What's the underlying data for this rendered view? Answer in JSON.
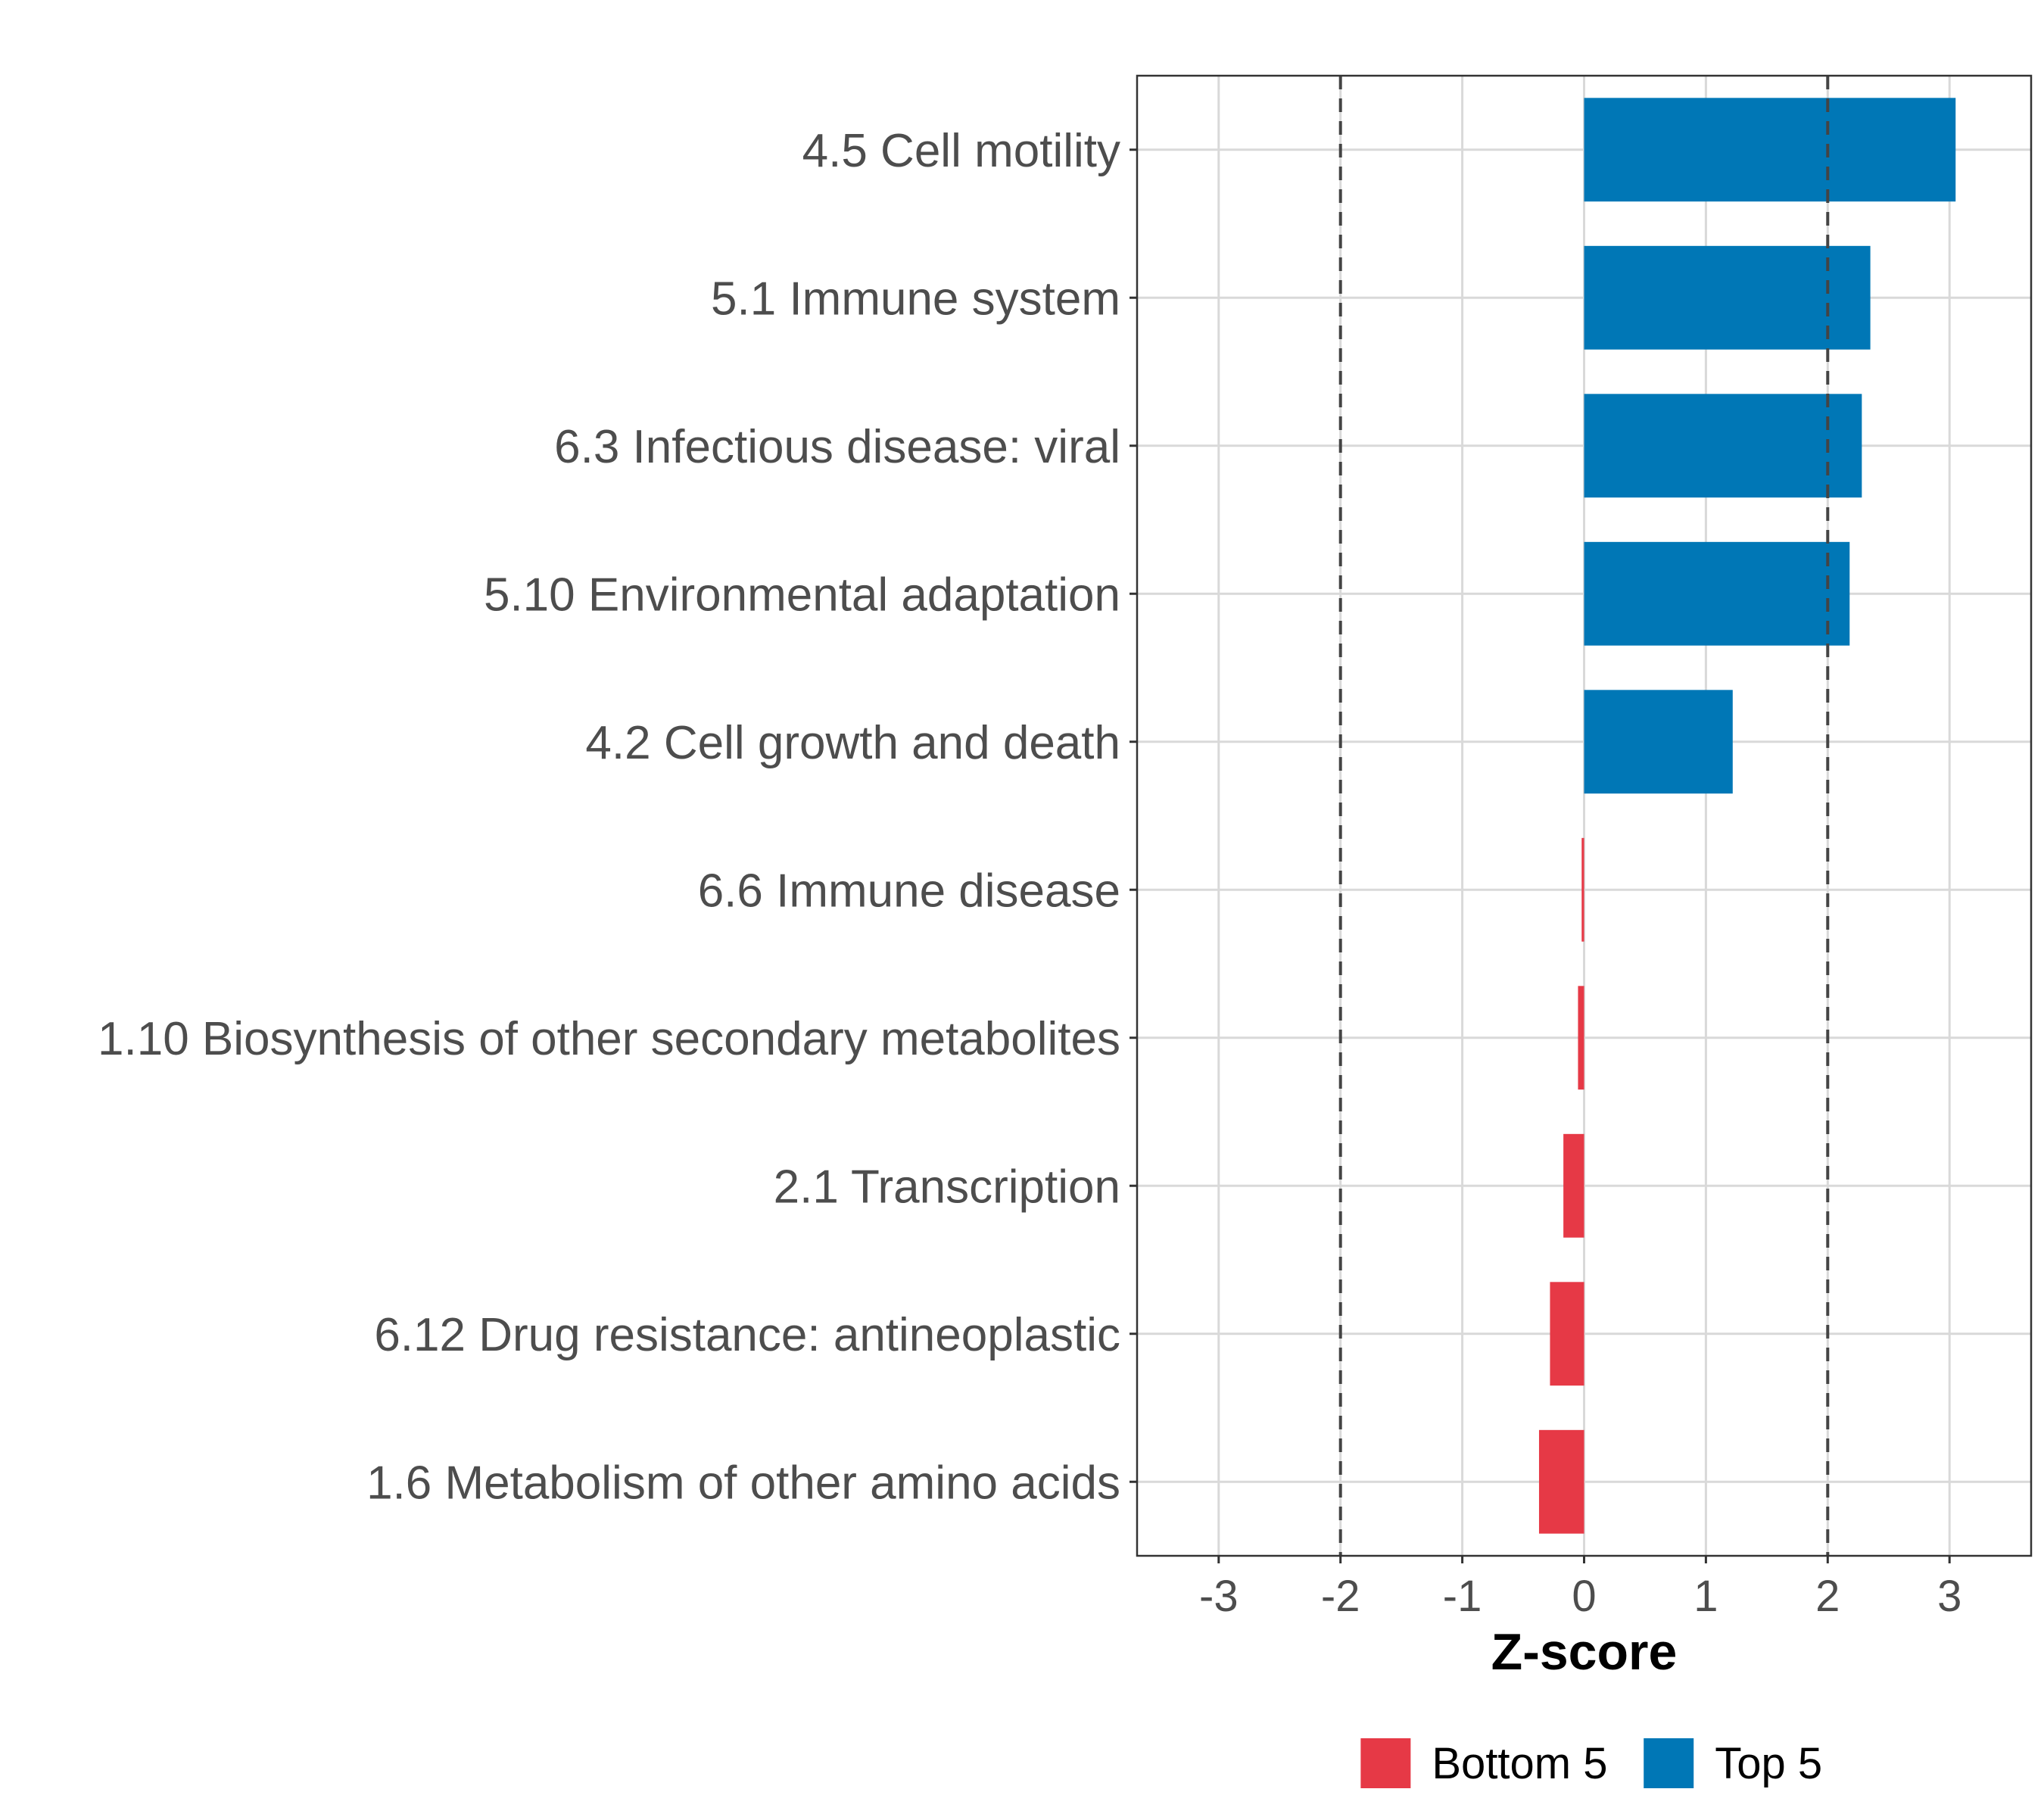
{
  "chart_data": {
    "type": "bar",
    "orientation": "horizontal",
    "categories": [
      "4.5 Cell motility",
      "5.1 Immune system",
      "6.3 Infectious disease: viral",
      "5.10 Environmental adaptation",
      "4.2 Cell growth and death",
      "6.6 Immune disease",
      "1.10 Biosynthesis of other secondary metabolites",
      "2.1 Transcription",
      "6.12 Drug resistance: antineoplastic",
      "1.6 Metabolism of other amino acids"
    ],
    "values": [
      3.05,
      2.35,
      2.28,
      2.18,
      1.22,
      -0.02,
      -0.05,
      -0.17,
      -0.28,
      -0.37
    ],
    "groups": [
      "Top 5",
      "Top 5",
      "Top 5",
      "Top 5",
      "Top 5",
      "Bottom 5",
      "Bottom 5",
      "Bottom 5",
      "Bottom 5",
      "Bottom 5"
    ],
    "xlabel": "Z-score",
    "ylabel": "",
    "xlim": [
      -3.67,
      3.67
    ],
    "xticks": [
      -3,
      -2,
      -1,
      0,
      1,
      2,
      3
    ],
    "xtick_labels": [
      "-3",
      "-2",
      "-1",
      "0",
      "1",
      "2",
      "3"
    ],
    "reference_lines": [
      -2,
      2
    ],
    "grid": true,
    "legend": {
      "position": "bottom",
      "entries": [
        {
          "name": "Bottom 5",
          "color": "#e63946"
        },
        {
          "name": "Top 5",
          "color": "#0077b6"
        }
      ]
    }
  }
}
